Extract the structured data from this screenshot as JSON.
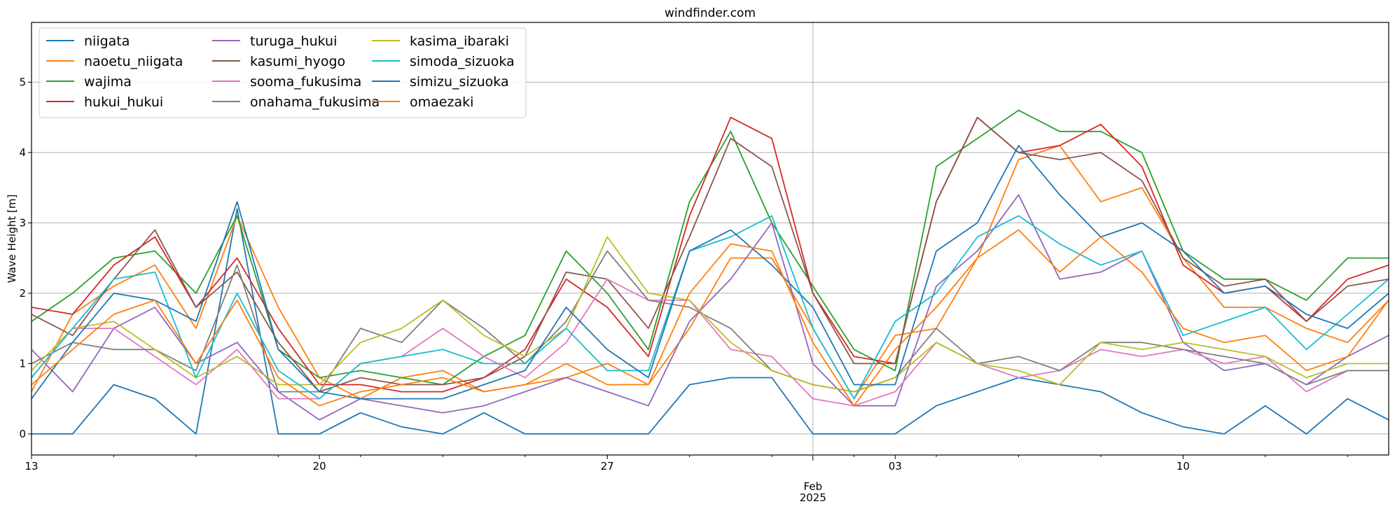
{
  "chart_data": {
    "type": "line",
    "title": "windfinder.com",
    "xlabel": "",
    "ylabel": "Wave Height [m]",
    "x_unit": "date",
    "x_range": [
      "2025-01-13",
      "2025-02-15"
    ],
    "ylim": [
      -0.3,
      5.85
    ],
    "yticks": [
      0,
      1,
      2,
      3,
      4,
      5
    ],
    "x_major_ticks": [
      {
        "date": "2025-01-13",
        "label": "13"
      },
      {
        "date": "2025-01-20",
        "label": "20"
      },
      {
        "date": "2025-01-27",
        "label": "27"
      },
      {
        "date": "2025-02-03",
        "label": "03"
      },
      {
        "date": "2025-02-10",
        "label": "10"
      }
    ],
    "x_month_marker": {
      "date": "2025-02-01",
      "label_line1": "Feb",
      "label_line2": "2025"
    },
    "grid": true,
    "legend": "top-left, 3 columns",
    "x": [
      "2025-01-13",
      "2025-01-14",
      "2025-01-15",
      "2025-01-16",
      "2025-01-17",
      "2025-01-18",
      "2025-01-19",
      "2025-01-20",
      "2025-01-21",
      "2025-01-22",
      "2025-01-23",
      "2025-01-24",
      "2025-01-25",
      "2025-01-26",
      "2025-01-27",
      "2025-01-28",
      "2025-01-29",
      "2025-01-30",
      "2025-01-31",
      "2025-02-01",
      "2025-02-02",
      "2025-02-03",
      "2025-02-04",
      "2025-02-05",
      "2025-02-06",
      "2025-02-07",
      "2025-02-08",
      "2025-02-09",
      "2025-02-10",
      "2025-02-11",
      "2025-02-12",
      "2025-02-13",
      "2025-02-14",
      "2025-02-15"
    ],
    "series": [
      {
        "name": "niigata",
        "color": "#1f77b4",
        "values": [
          0.0,
          0.0,
          0.7,
          0.5,
          0.0,
          3.2,
          0.0,
          0.0,
          0.3,
          0.1,
          0.0,
          0.3,
          0.0,
          0.0,
          0.0,
          0.0,
          0.7,
          0.8,
          0.8,
          0.0,
          0.0,
          0.0,
          0.4,
          0.6,
          0.8,
          0.7,
          0.6,
          0.3,
          0.1,
          0.0,
          0.4,
          0.0,
          0.5,
          0.2
        ]
      },
      {
        "name": "naoetu_niigata",
        "color": "#ff7f0e",
        "values": [
          0.6,
          1.7,
          2.1,
          2.4,
          1.5,
          3.1,
          1.8,
          0.8,
          0.5,
          0.8,
          0.9,
          0.6,
          0.7,
          0.8,
          1.0,
          0.7,
          1.5,
          2.5,
          2.5,
          1.5,
          0.5,
          1.4,
          1.5,
          2.5,
          3.9,
          4.1,
          3.3,
          3.5,
          2.5,
          1.8,
          1.8,
          1.5,
          1.3,
          1.9
        ]
      },
      {
        "name": "wajima",
        "color": "#2ca02c",
        "values": [
          1.6,
          2.0,
          2.5,
          2.6,
          2.0,
          3.1,
          1.2,
          0.8,
          0.9,
          0.8,
          0.7,
          1.1,
          1.4,
          2.6,
          2.0,
          1.2,
          3.3,
          4.3,
          3.0,
          2.1,
          1.2,
          0.9,
          3.8,
          4.2,
          4.6,
          4.3,
          4.3,
          4.0,
          2.6,
          2.2,
          2.2,
          1.9,
          2.5,
          2.5
        ]
      },
      {
        "name": "hukui_hukui",
        "color": "#d62728",
        "values": [
          1.8,
          1.7,
          2.4,
          2.8,
          1.8,
          2.5,
          1.5,
          0.7,
          0.7,
          0.6,
          0.6,
          0.8,
          1.2,
          2.2,
          1.8,
          1.1,
          3.1,
          4.5,
          4.2,
          2.0,
          1.1,
          1.0,
          3.3,
          4.5,
          4.0,
          4.1,
          4.4,
          3.8,
          2.4,
          2.0,
          2.1,
          1.6,
          2.2,
          2.4
        ]
      },
      {
        "name": "turuga_hukui",
        "color": "#9467bd",
        "values": [
          1.2,
          0.6,
          1.5,
          1.8,
          1.0,
          1.3,
          0.6,
          0.2,
          0.5,
          0.4,
          0.3,
          0.4,
          0.6,
          0.8,
          0.6,
          0.4,
          1.6,
          2.2,
          3.0,
          1.0,
          0.4,
          0.4,
          2.1,
          2.6,
          3.4,
          2.2,
          2.3,
          2.6,
          1.3,
          0.9,
          1.0,
          0.7,
          1.1,
          1.4
        ]
      },
      {
        "name": "kasumi_hyogo",
        "color": "#8c564b",
        "values": [
          1.7,
          1.4,
          2.2,
          2.9,
          1.8,
          2.3,
          1.3,
          0.6,
          0.8,
          0.7,
          0.7,
          0.8,
          1.1,
          2.3,
          2.2,
          1.5,
          2.8,
          4.2,
          3.8,
          2.0,
          1.0,
          1.0,
          3.3,
          4.5,
          4.0,
          3.9,
          4.0,
          3.6,
          2.5,
          2.1,
          2.2,
          1.6,
          2.1,
          2.2
        ]
      },
      {
        "name": "sooma_fukusima",
        "color": "#e377c2",
        "values": [
          0.8,
          1.5,
          1.5,
          1.1,
          0.7,
          1.2,
          0.5,
          0.5,
          1.0,
          1.1,
          1.5,
          1.1,
          0.8,
          1.3,
          2.2,
          1.9,
          1.9,
          1.2,
          1.1,
          0.5,
          0.4,
          0.6,
          1.3,
          1.0,
          0.8,
          0.9,
          1.2,
          1.1,
          1.2,
          1.0,
          1.1,
          0.6,
          0.9,
          0.9
        ]
      },
      {
        "name": "onahama_fukusima",
        "color": "#7f7f7f",
        "values": [
          1.0,
          1.3,
          1.2,
          1.2,
          0.9,
          2.4,
          0.6,
          0.6,
          1.5,
          1.3,
          1.9,
          1.5,
          1.0,
          1.6,
          2.6,
          1.9,
          1.8,
          1.5,
          0.9,
          0.7,
          0.6,
          0.8,
          1.5,
          1.0,
          1.1,
          0.9,
          1.3,
          1.3,
          1.2,
          1.1,
          1.0,
          0.7,
          0.9,
          0.9
        ]
      },
      {
        "name": "kasima_ibaraki",
        "color": "#bcbd22",
        "values": [
          0.9,
          1.5,
          1.6,
          1.2,
          0.8,
          1.1,
          0.7,
          0.7,
          1.3,
          1.5,
          1.9,
          1.4,
          1.1,
          1.5,
          2.8,
          2.0,
          1.9,
          1.3,
          0.9,
          0.7,
          0.6,
          0.8,
          1.3,
          1.0,
          0.9,
          0.7,
          1.3,
          1.2,
          1.3,
          1.2,
          1.1,
          0.8,
          1.0,
          1.0
        ]
      },
      {
        "name": "simoda_sizuoka",
        "color": "#17becf",
        "values": [
          0.8,
          1.5,
          2.2,
          2.3,
          0.8,
          2.0,
          0.9,
          0.5,
          1.0,
          1.1,
          1.2,
          1.0,
          1.0,
          1.5,
          0.9,
          0.9,
          2.6,
          2.8,
          3.1,
          1.5,
          0.5,
          1.6,
          2.0,
          2.8,
          3.1,
          2.7,
          2.4,
          2.6,
          1.4,
          1.6,
          1.8,
          1.2,
          1.7,
          2.2
        ]
      },
      {
        "name": "simizu_sizuoka",
        "color": "#1f77b4",
        "values": [
          0.5,
          1.3,
          2.0,
          1.9,
          1.6,
          3.3,
          1.2,
          0.6,
          0.5,
          0.5,
          0.5,
          0.7,
          0.9,
          1.8,
          1.2,
          0.8,
          2.6,
          2.9,
          2.4,
          1.8,
          0.7,
          0.7,
          2.6,
          3.0,
          4.1,
          3.4,
          2.8,
          3.0,
          2.6,
          2.0,
          2.1,
          1.7,
          1.5,
          2.0
        ]
      },
      {
        "name": "omaezaki",
        "color": "#ff7f0e",
        "values": [
          0.7,
          1.2,
          1.7,
          1.9,
          1.0,
          1.9,
          0.8,
          0.4,
          0.6,
          0.7,
          0.8,
          0.6,
          0.7,
          1.0,
          0.7,
          0.7,
          2.0,
          2.7,
          2.6,
          1.3,
          0.4,
          1.2,
          1.8,
          2.5,
          2.9,
          2.3,
          2.8,
          2.3,
          1.5,
          1.3,
          1.4,
          0.9,
          1.1,
          1.9
        ]
      }
    ]
  }
}
